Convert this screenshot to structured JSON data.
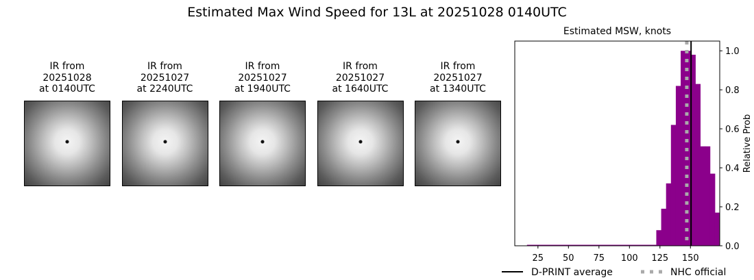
{
  "title": "Estimated Max Wind Speed for 13L at 20251028 0140UTC",
  "panels": [
    {
      "l1": "IR from",
      "l2": "20251028",
      "l3": "at 0140UTC"
    },
    {
      "l1": "IR from",
      "l2": "20251027",
      "l3": "at 2240UTC"
    },
    {
      "l1": "IR from",
      "l2": "20251027",
      "l3": "at 1940UTC"
    },
    {
      "l1": "IR from",
      "l2": "20251027",
      "l3": "at 1640UTC"
    },
    {
      "l1": "IR from",
      "l2": "20251027",
      "l3": "at 1340UTC"
    }
  ],
  "chart_data": {
    "type": "bar",
    "title": "Estimated MSW, knots",
    "ylabel": "Relative Prob",
    "xlim": [
      6,
      174
    ],
    "ylim": [
      0,
      1.05
    ],
    "xticks": [
      25,
      50,
      75,
      100,
      125,
      150
    ],
    "yticks": [
      "0.0",
      "0.2",
      "0.4",
      "0.6",
      "0.8",
      "1.0"
    ],
    "bar_color": "#8b008b",
    "low_range": {
      "x0": 16,
      "x1": 122,
      "value": 0.005
    },
    "bin_width": 4,
    "bins": [
      122,
      126,
      130,
      134,
      138,
      142,
      146,
      150,
      154,
      158,
      162,
      166,
      170
    ],
    "values": [
      0.08,
      0.19,
      0.32,
      0.62,
      0.82,
      1.0,
      1.0,
      0.98,
      0.83,
      0.51,
      0.51,
      0.37,
      0.17
    ],
    "dprint_average": 150.5,
    "nhc_official": 147,
    "legend": [
      "D-PRINT average",
      "NHC official"
    ],
    "legend_placement": "bottom"
  }
}
